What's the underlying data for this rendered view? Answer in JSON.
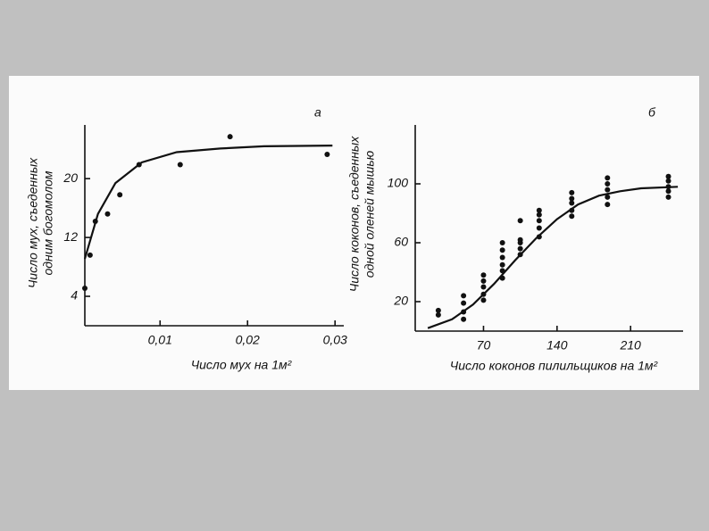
{
  "chart_data": [
    {
      "type": "scatter",
      "panel_label": "а",
      "xlabel": "Число мух на 1м²",
      "ylabel": [
        "Число мух, съеденных",
        "одним богомолом"
      ],
      "xlim": [
        0.0014,
        0.031
      ],
      "ylim": [
        0,
        27.3
      ],
      "xticks": [
        {
          "value": 0.01,
          "label": "0,01"
        },
        {
          "value": 0.02,
          "label": "0,02"
        },
        {
          "value": 0.03,
          "label": "0,03"
        }
      ],
      "yticks": [
        4,
        12,
        20
      ],
      "series": [
        {
          "mode": "markers",
          "color": "#111",
          "x": [
            0.0014,
            0.002,
            0.0026,
            0.004,
            0.0054,
            0.0076,
            0.0123,
            0.018,
            0.0291
          ],
          "values": [
            5.1,
            9.6,
            14.2,
            15.2,
            17.8,
            21.9,
            21.9,
            25.7,
            23.3
          ]
        },
        {
          "mode": "line",
          "color": "#111",
          "x": [
            0.0014,
            0.0029,
            0.0049,
            0.0079,
            0.0119,
            0.0169,
            0.0219,
            0.0297
          ],
          "values": [
            9.1,
            15.2,
            19.4,
            22.2,
            23.6,
            24.1,
            24.4,
            24.5
          ]
        }
      ]
    },
    {
      "type": "scatter",
      "panel_label": "б",
      "xlabel": "Число коконов пилильщиков на 1м²",
      "ylabel": [
        "Число коконов, съеденных",
        "одной оленей мышью"
      ],
      "xlim": [
        5,
        260
      ],
      "ylim": [
        0,
        140
      ],
      "xticks": [
        70,
        140,
        210
      ],
      "yticks": [
        20,
        60,
        100
      ],
      "series": [
        {
          "mode": "markers",
          "color": "#111",
          "x": [
            27,
            27,
            51,
            51,
            51,
            51,
            70,
            70,
            70,
            70,
            70,
            88,
            88,
            88,
            88,
            88,
            88,
            105,
            105,
            105,
            105,
            105,
            123,
            123,
            123,
            123,
            123,
            154,
            154,
            154,
            154,
            154,
            188,
            188,
            188,
            188,
            188,
            246,
            246,
            246,
            246,
            246
          ],
          "values": [
            14,
            11,
            24,
            19,
            13,
            8,
            38,
            34,
            30,
            25,
            21,
            60,
            55,
            50,
            45,
            41,
            36,
            75,
            62,
            60,
            56,
            52,
            82,
            79,
            75,
            70,
            64,
            94,
            90,
            87,
            82,
            78,
            104,
            100,
            96,
            91,
            86,
            105,
            102,
            98,
            95,
            91
          ]
        },
        {
          "mode": "line",
          "color": "#111",
          "x": [
            17,
            40,
            60,
            80,
            100,
            120,
            140,
            160,
            180,
            200,
            220,
            255
          ],
          "values": [
            2,
            8,
            18,
            32,
            48,
            63,
            76,
            86,
            92,
            95,
            97,
            98
          ]
        }
      ]
    }
  ]
}
